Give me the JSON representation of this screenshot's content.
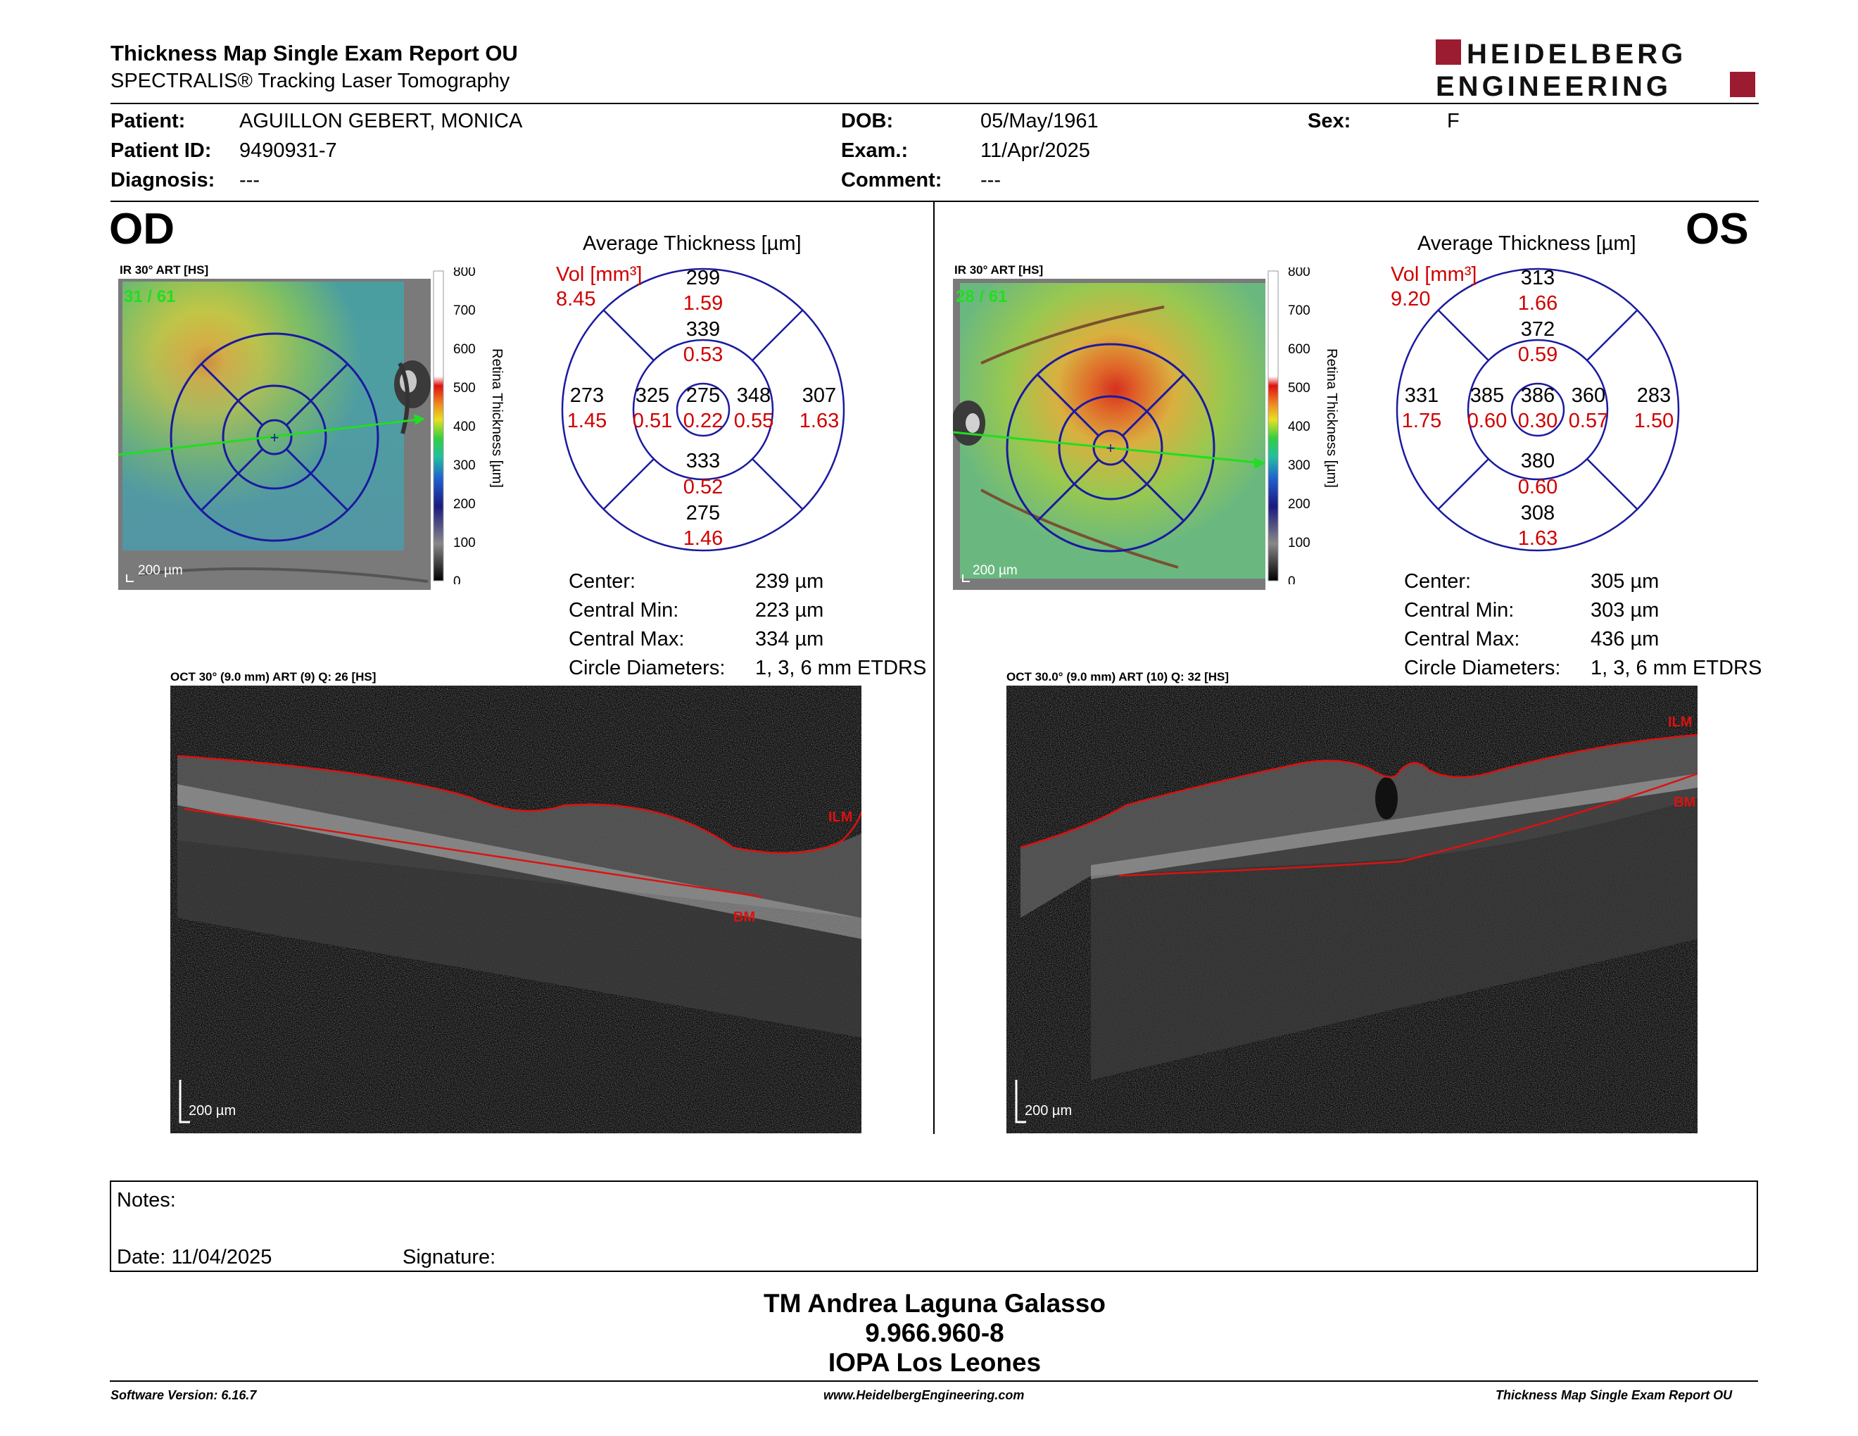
{
  "header": {
    "title": "Thickness Map Single Exam Report OU",
    "subtitle": "SPECTRALIS® Tracking Laser Tomography",
    "logo_line1": "HEIDELBERG",
    "logo_line2": "ENGINEERING"
  },
  "patient": {
    "patient_label": "Patient:",
    "patient_value": "AGUILLON GEBERT, MONICA",
    "id_label": "Patient ID:",
    "id_value": "9490931-7",
    "diagnosis_label": "Diagnosis:",
    "diagnosis_value": "---",
    "dob_label": "DOB:",
    "dob_value": "05/May/1961",
    "exam_label": "Exam.:",
    "exam_value": "11/Apr/2025",
    "comment_label": "Comment:",
    "comment_value": "---",
    "sex_label": "Sex:",
    "sex_value": "F"
  },
  "colorbar": {
    "ticks": [
      "800",
      "700",
      "600",
      "500",
      "400",
      "300",
      "200",
      "100",
      "0"
    ],
    "label": "Retina Thickness [µm]"
  },
  "od": {
    "eye": "OD",
    "ir_caption": "IR 30° ART [HS]",
    "frame_counter": "31 / 61",
    "scale": "200 µm",
    "avg_title": "Average Thickness [µm]",
    "vol_label": "Vol [mm³]",
    "vol_value": "8.45",
    "etdrs": {
      "center": {
        "t": "275",
        "v": "0.22"
      },
      "inner_sup": {
        "t": "339",
        "v": "0.53"
      },
      "inner_inf": {
        "t": "333",
        "v": "0.52"
      },
      "inner_left": {
        "t": "325",
        "v": "0.51"
      },
      "inner_right": {
        "t": "348",
        "v": "0.55"
      },
      "outer_sup": {
        "t": "299",
        "v": "1.59"
      },
      "outer_inf": {
        "t": "275",
        "v": "1.46"
      },
      "outer_left": {
        "t": "273",
        "v": "1.45"
      },
      "outer_right": {
        "t": "307",
        "v": "1.63"
      }
    },
    "stats": [
      {
        "label": "Center:",
        "value": "239 µm"
      },
      {
        "label": "Central Min:",
        "value": "223 µm"
      },
      {
        "label": "Central Max:",
        "value": "334 µm"
      },
      {
        "label": "Circle Diameters:",
        "value": "1, 3, 6 mm ETDRS"
      }
    ],
    "oct_caption": "OCT 30° (9.0 mm) ART (9) Q: 26 [HS]",
    "oct_ilm": "ILM",
    "oct_bm": "BM",
    "oct_scale": "200 µm"
  },
  "os": {
    "eye": "OS",
    "ir_caption": "IR 30° ART [HS]",
    "frame_counter": "28 / 61",
    "scale": "200 µm",
    "avg_title": "Average Thickness [µm]",
    "vol_label": "Vol [mm³]",
    "vol_value": "9.20",
    "etdrs": {
      "center": {
        "t": "386",
        "v": "0.30"
      },
      "inner_sup": {
        "t": "372",
        "v": "0.59"
      },
      "inner_inf": {
        "t": "380",
        "v": "0.60"
      },
      "inner_left": {
        "t": "385",
        "v": "0.60"
      },
      "inner_right": {
        "t": "360",
        "v": "0.57"
      },
      "outer_sup": {
        "t": "313",
        "v": "1.66"
      },
      "outer_inf": {
        "t": "308",
        "v": "1.63"
      },
      "outer_left": {
        "t": "331",
        "v": "1.75"
      },
      "outer_right": {
        "t": "283",
        "v": "1.50"
      }
    },
    "stats": [
      {
        "label": "Center:",
        "value": "305 µm"
      },
      {
        "label": "Central Min:",
        "value": "303 µm"
      },
      {
        "label": "Central Max:",
        "value": "436 µm"
      },
      {
        "label": "Circle Diameters:",
        "value": "1, 3, 6 mm ETDRS"
      }
    ],
    "oct_caption": "OCT 30.0° (9.0 mm) ART (10) Q: 32 [HS]",
    "oct_ilm": "ILM",
    "oct_bm": "BM",
    "oct_scale": "200 µm"
  },
  "notes": {
    "notes_label": "Notes:",
    "date_label": "Date: 11/04/2025",
    "signature_label": "Signature:"
  },
  "signer": {
    "name": "TM Andrea Laguna Galasso",
    "id": "9.966.960-8",
    "org": "IOPA Los Leones"
  },
  "footer": {
    "software": "Software Version: 6.16.7",
    "website": "www.HeidelbergEngineering.com",
    "report": "Thickness Map Single Exam Report OU"
  },
  "colors": {
    "logo_red": "#9b1b30",
    "etdrs_blue": "#1a1aa0",
    "volume_red": "#d00000",
    "scan_green": "#22dd22",
    "segment_red": "#dd1111"
  }
}
